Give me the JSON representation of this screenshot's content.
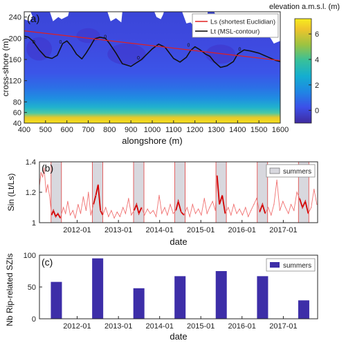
{
  "chart_data": [
    {
      "panel": "(a)",
      "type": "heatmap",
      "xlabel": "alongshore (m)",
      "ylabel": "cross-shore (m)",
      "xlim": [
        400,
        1600
      ],
      "ylim": [
        40,
        250
      ],
      "xticks": [
        400,
        500,
        600,
        700,
        800,
        900,
        1000,
        1100,
        1200,
        1300,
        1400,
        1500,
        1600
      ],
      "yticks": [
        40,
        60,
        80,
        120,
        160,
        200,
        240
      ],
      "colorbar": {
        "label": "elevation a.m.s.l. (m)",
        "range": [
          -1,
          7.2
        ],
        "ticks": [
          0,
          2,
          4,
          6
        ]
      },
      "legend": {
        "placement": "top-right",
        "entries": [
          {
            "name": "Ls (shortest Euclidian)",
            "color": "#e02020"
          },
          {
            "name": "Lt (MSL-contour)",
            "color": "#000000"
          }
        ]
      },
      "ls_line": {
        "x": [
          400,
          1600
        ],
        "y": [
          214,
          158
        ]
      },
      "lt_contour": {
        "label": "0",
        "x": [
          400,
          420,
          440,
          470,
          500,
          530,
          555,
          580,
          600,
          620,
          645,
          670,
          690,
          710,
          730,
          755,
          780,
          800,
          830,
          860,
          900,
          950,
          1000,
          1030,
          1060,
          1100,
          1130,
          1160,
          1180,
          1200,
          1225,
          1250,
          1270,
          1290,
          1320,
          1350,
          1380,
          1400,
          1430,
          1460,
          1500,
          1540,
          1580,
          1600
        ],
        "y": [
          204,
          202,
          195,
          178,
          165,
          162,
          168,
          190,
          195,
          186,
          170,
          161,
          172,
          185,
          199,
          202,
          200,
          190,
          172,
          152,
          147,
          160,
          180,
          189,
          183,
          162,
          155,
          164,
          177,
          184,
          178,
          170,
          166,
          156,
          145,
          148,
          156,
          170,
          178,
          176,
          172,
          165,
          158,
          156
        ]
      },
      "field": {
        "shoreline_y": [
          55,
          62,
          70,
          80,
          95,
          110
        ],
        "land_color": "#f6e21c",
        "water_color": "#3b3ae0"
      }
    },
    {
      "panel": "(b)",
      "type": "line",
      "xlabel": "date",
      "ylabel": "Sin (Lt/Ls)",
      "ylim": [
        1,
        1.4
      ],
      "yticks": [
        "1",
        "1.2",
        "1.4"
      ],
      "xlim": [
        "2011-02-01",
        "2017-11-01"
      ],
      "xtick_labels": [
        "2012-01",
        "2013-01",
        "2014-01",
        "2015-01",
        "2016-01",
        "2017-01"
      ],
      "legend": {
        "placement": "top-right",
        "entries": [
          {
            "name": "summers",
            "color": "#d8d8de"
          }
        ]
      },
      "summers": [
        [
          "2011-05-15",
          "2011-08-15"
        ],
        [
          "2012-05-15",
          "2012-08-15"
        ],
        [
          "2013-05-15",
          "2013-08-15"
        ],
        [
          "2014-05-15",
          "2014-08-15"
        ],
        [
          "2015-05-15",
          "2015-08-15"
        ],
        [
          "2016-05-15",
          "2016-08-15"
        ],
        [
          "2017-05-15",
          "2017-08-15"
        ]
      ],
      "series": [
        {
          "color": "#f07070",
          "x": [
            "2011-02-01",
            "2011-02-15",
            "2011-03-01",
            "2011-03-15",
            "2011-04-01",
            "2011-04-15",
            "2011-05-01",
            "2011-05-20",
            "2011-06-05",
            "2011-06-25",
            "2011-07-15",
            "2011-08-05",
            "2011-09-01",
            "2011-09-20",
            "2011-10-10",
            "2011-11-01",
            "2011-11-25",
            "2011-12-15",
            "2012-01-10",
            "2012-02-01",
            "2012-02-25",
            "2012-03-20",
            "2012-04-10",
            "2012-05-01",
            "2012-05-25",
            "2012-06-15",
            "2012-07-05",
            "2012-07-25",
            "2012-08-15",
            "2012-09-10",
            "2012-10-05",
            "2012-10-30",
            "2012-11-25",
            "2012-12-20",
            "2013-01-15",
            "2013-02-10",
            "2013-03-05",
            "2013-04-01",
            "2013-04-25",
            "2013-05-20",
            "2013-06-10",
            "2013-07-01",
            "2013-07-25",
            "2013-08-20",
            "2013-09-15",
            "2013-10-10",
            "2013-11-05",
            "2013-12-01",
            "2013-12-28",
            "2014-01-20",
            "2014-02-15",
            "2014-03-10",
            "2014-04-05",
            "2014-05-01",
            "2014-05-25",
            "2014-06-15",
            "2014-07-10",
            "2014-08-05",
            "2014-09-01",
            "2014-09-25",
            "2014-10-20",
            "2014-11-15",
            "2014-12-10",
            "2015-01-05",
            "2015-02-01",
            "2015-02-25",
            "2015-03-20",
            "2015-04-15",
            "2015-05-10",
            "2015-05-25",
            "2015-06-15",
            "2015-07-10",
            "2015-08-05",
            "2015-09-01",
            "2015-09-25",
            "2015-10-20",
            "2015-11-15",
            "2015-12-10",
            "2016-01-05",
            "2016-02-01",
            "2016-02-25",
            "2016-03-20",
            "2016-04-15",
            "2016-05-10",
            "2016-06-05",
            "2016-06-30",
            "2016-07-25",
            "2016-08-20",
            "2016-09-15",
            "2016-10-10",
            "2016-11-05",
            "2016-12-01",
            "2016-12-28",
            "2017-01-20",
            "2017-02-15",
            "2017-03-10",
            "2017-04-05",
            "2017-05-01",
            "2017-05-25",
            "2017-06-20",
            "2017-07-15",
            "2017-08-10",
            "2017-09-05",
            "2017-09-30",
            "2017-10-25"
          ],
          "y": [
            1.24,
            1.33,
            1.3,
            1.36,
            1.2,
            1.25,
            1.18,
            1.05,
            1.08,
            1.04,
            1.06,
            1.03,
            1.1,
            1.06,
            1.14,
            1.05,
            1.08,
            1.03,
            1.12,
            1.06,
            1.17,
            1.08,
            1.2,
            1.05,
            1.12,
            1.18,
            1.25,
            1.08,
            1.05,
            1.1,
            1.04,
            1.08,
            1.03,
            1.07,
            1.04,
            1.1,
            1.06,
            1.16,
            1.05,
            1.08,
            1.12,
            1.06,
            1.1,
            1.05,
            1.09,
            1.06,
            1.08,
            1.04,
            1.18,
            1.06,
            1.1,
            1.05,
            1.12,
            1.06,
            1.08,
            1.14,
            1.07,
            1.05,
            1.1,
            1.04,
            1.12,
            1.06,
            1.09,
            1.05,
            1.16,
            1.06,
            1.1,
            1.14,
            1.08,
            1.31,
            1.12,
            1.18,
            1.06,
            1.1,
            1.05,
            1.12,
            1.06,
            1.09,
            1.05,
            1.1,
            1.04,
            1.08,
            1.12,
            1.16,
            1.07,
            1.12,
            1.06,
            1.1,
            1.05,
            1.12,
            1.28,
            1.08,
            1.14,
            1.1,
            1.06,
            1.12,
            1.08,
            1.2,
            1.16,
            1.1,
            1.14,
            1.06,
            1.1,
            1.22,
            1.12
          ]
        }
      ]
    },
    {
      "panel": "(c)",
      "type": "bar",
      "xlabel": "date",
      "ylabel": "Nb Rip-related SZIs",
      "ylim": [
        0,
        100
      ],
      "yticks": [
        "0",
        "50",
        "100"
      ],
      "xlim": [
        "2011-02-01",
        "2017-11-01"
      ],
      "xtick_labels": [
        "2012-01",
        "2013-01",
        "2014-01",
        "2015-01",
        "2016-01",
        "2017-01"
      ],
      "legend": {
        "placement": "top-right",
        "entries": [
          {
            "name": "summers",
            "color": "#3d2ea8"
          }
        ]
      },
      "x": [
        "2011-07-01",
        "2012-07-01",
        "2013-07-01",
        "2014-07-01",
        "2015-07-01",
        "2016-07-01",
        "2017-07-01"
      ],
      "values": [
        58,
        95,
        48,
        67,
        75,
        67,
        29
      ]
    }
  ]
}
